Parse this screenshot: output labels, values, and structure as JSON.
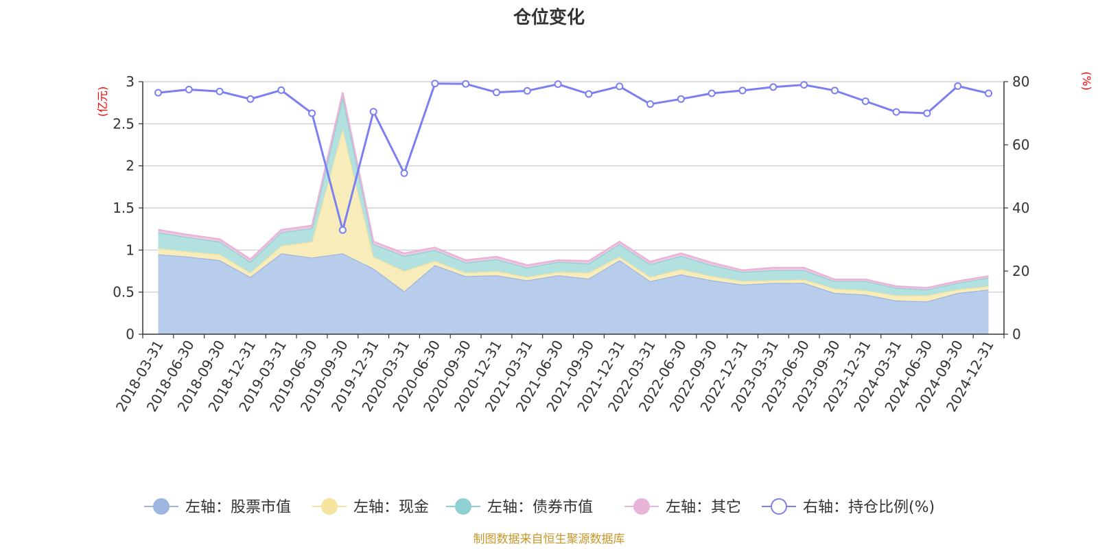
{
  "chart_data": {
    "type": "area",
    "title": "仓位变化",
    "left_axis": {
      "unit": "(亿元)",
      "ylim": [
        0,
        3
      ],
      "ticks": [
        0,
        0.5,
        1,
        1.5,
        2,
        2.5,
        3
      ],
      "tick_labels": [
        "0",
        "0.5",
        "1",
        "1.5",
        "2",
        "2.5",
        "3"
      ]
    },
    "right_axis": {
      "unit": "(%)",
      "ylim": [
        0,
        80
      ],
      "ticks": [
        0,
        20,
        40,
        60,
        80
      ],
      "tick_labels": [
        "0",
        "20",
        "40",
        "60",
        "80"
      ]
    },
    "categories": [
      "2018-03-31",
      "2018-06-30",
      "2018-09-30",
      "2018-12-31",
      "2019-03-31",
      "2019-06-30",
      "2019-09-30",
      "2019-12-31",
      "2020-03-31",
      "2020-06-30",
      "2020-09-30",
      "2020-12-31",
      "2021-03-31",
      "2021-06-30",
      "2021-09-30",
      "2021-12-31",
      "2022-03-31",
      "2022-06-30",
      "2022-09-30",
      "2022-12-31",
      "2023-03-31",
      "2023-06-30",
      "2023-09-30",
      "2023-12-31",
      "2024-03-31",
      "2024-06-30",
      "2024-09-30",
      "2024-12-31"
    ],
    "series": [
      {
        "name": "左轴：股票市值",
        "axis": "left",
        "stack": true,
        "color": "#9db6e0",
        "fill": "#b8cceb",
        "values": [
          0.95,
          0.92,
          0.88,
          0.68,
          0.96,
          0.91,
          0.96,
          0.78,
          0.51,
          0.82,
          0.69,
          0.7,
          0.64,
          0.7,
          0.66,
          0.88,
          0.63,
          0.71,
          0.64,
          0.59,
          0.61,
          0.61,
          0.49,
          0.47,
          0.4,
          0.39,
          0.49,
          0.53
        ]
      },
      {
        "name": "左轴：现金",
        "axis": "left",
        "stack": true,
        "color": "#f6e3a0",
        "fill": "#f8ecba",
        "values": [
          0.07,
          0.06,
          0.07,
          0.05,
          0.09,
          0.19,
          1.48,
          0.14,
          0.24,
          0.05,
          0.04,
          0.05,
          0.04,
          0.04,
          0.07,
          0.04,
          0.05,
          0.06,
          0.05,
          0.04,
          0.03,
          0.04,
          0.05,
          0.05,
          0.06,
          0.07,
          0.04,
          0.04
        ]
      },
      {
        "name": "左轴：债券市值",
        "axis": "left",
        "stack": true,
        "color": "#8fd1d0",
        "fill": "#b3e1e0",
        "values": [
          0.19,
          0.17,
          0.15,
          0.13,
          0.16,
          0.16,
          0.38,
          0.15,
          0.18,
          0.13,
          0.12,
          0.14,
          0.11,
          0.12,
          0.11,
          0.15,
          0.15,
          0.16,
          0.13,
          0.11,
          0.12,
          0.11,
          0.09,
          0.11,
          0.09,
          0.07,
          0.08,
          0.1
        ]
      },
      {
        "name": "左轴：其它",
        "axis": "left",
        "stack": true,
        "color": "#e8b4d8",
        "fill": "#efc7e2",
        "values": [
          0.03,
          0.03,
          0.03,
          0.03,
          0.03,
          0.03,
          0.05,
          0.03,
          0.03,
          0.03,
          0.03,
          0.03,
          0.03,
          0.02,
          0.03,
          0.03,
          0.03,
          0.03,
          0.03,
          0.02,
          0.03,
          0.03,
          0.02,
          0.02,
          0.02,
          0.02,
          0.02,
          0.02
        ]
      },
      {
        "name": "右轴：持仓比例(%)",
        "axis": "right",
        "type": "line",
        "color": "#7b7ff0",
        "values": [
          76.5,
          77.5,
          76.9,
          74.5,
          77.3,
          70.0,
          33.0,
          70.5,
          51.0,
          79.4,
          79.3,
          76.6,
          77.1,
          79.2,
          76.1,
          78.5,
          72.9,
          74.5,
          76.3,
          77.2,
          78.3,
          79.0,
          77.2,
          73.8,
          70.4,
          70.0,
          78.6,
          76.3
        ]
      }
    ],
    "legend_position": "bottom",
    "grid": true
  },
  "footer": "制图数据来自恒生聚源数据库"
}
